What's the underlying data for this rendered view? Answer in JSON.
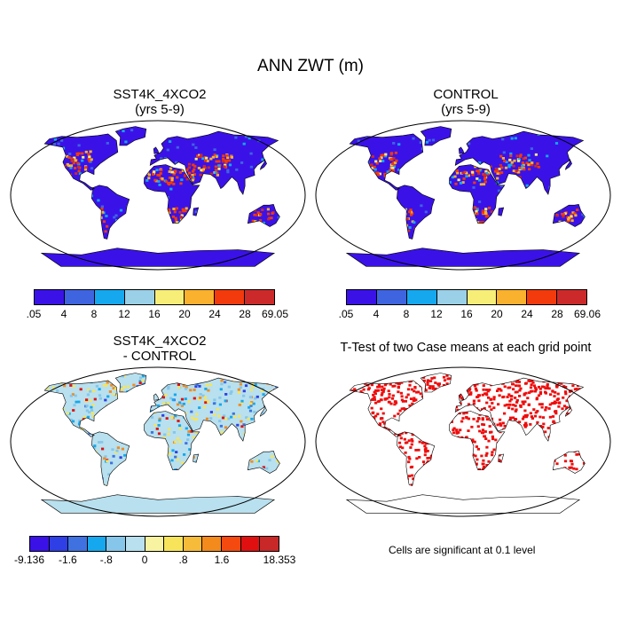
{
  "title": "ANN ZWT (m)",
  "panels": {
    "p1": {
      "title_line1": "SST4K_4XCO2",
      "title_line2": "(yrs 5-9)"
    },
    "p2": {
      "title_line1": "CONTROL",
      "title_line2": "(yrs 5-9)"
    },
    "p3": {
      "title_line1": "SST4K_4XCO2",
      "title_line2": "- CONTROL"
    },
    "p4": {
      "title_line1": "T-Test of two Case means at each grid point"
    }
  },
  "colorbars": {
    "abs1": {
      "labels": [
        ".05",
        "4",
        "8",
        "12",
        "16",
        "20",
        "24",
        "28",
        "69.05"
      ],
      "colors": [
        "#3a12e8",
        "#3f64e0",
        "#15a8ee",
        "#9ad0e8",
        "#f7ee78",
        "#f9b12e",
        "#f23a0c",
        "#cc2a2a"
      ]
    },
    "abs2": {
      "labels": [
        ".05",
        "4",
        "8",
        "12",
        "16",
        "20",
        "24",
        "28",
        "69.06"
      ],
      "colors": [
        "#3a12e8",
        "#3f64e0",
        "#15a8ee",
        "#9ad0e8",
        "#f7ee78",
        "#f9b12e",
        "#f23a0c",
        "#cc2a2a"
      ]
    },
    "diff": {
      "labels": [
        "-9.136",
        "-1.6",
        "-.8",
        "0",
        ".8",
        "1.6",
        "18.353"
      ],
      "colors": [
        "#3a12e8",
        "#2f3fe6",
        "#3f72e0",
        "#15a8ee",
        "#86c6ea",
        "#b8e0ee",
        "#f8f3a0",
        "#f7e45a",
        "#f7bb3a",
        "#f38a1c",
        "#f44a10",
        "#e01010",
        "#c82828"
      ]
    }
  },
  "ttest_note": "Cells are significant at 0.1 level",
  "colors": {
    "ocean_bg": "#ffffff",
    "significant": "#ee0d0d",
    "outline": "#000000"
  }
}
